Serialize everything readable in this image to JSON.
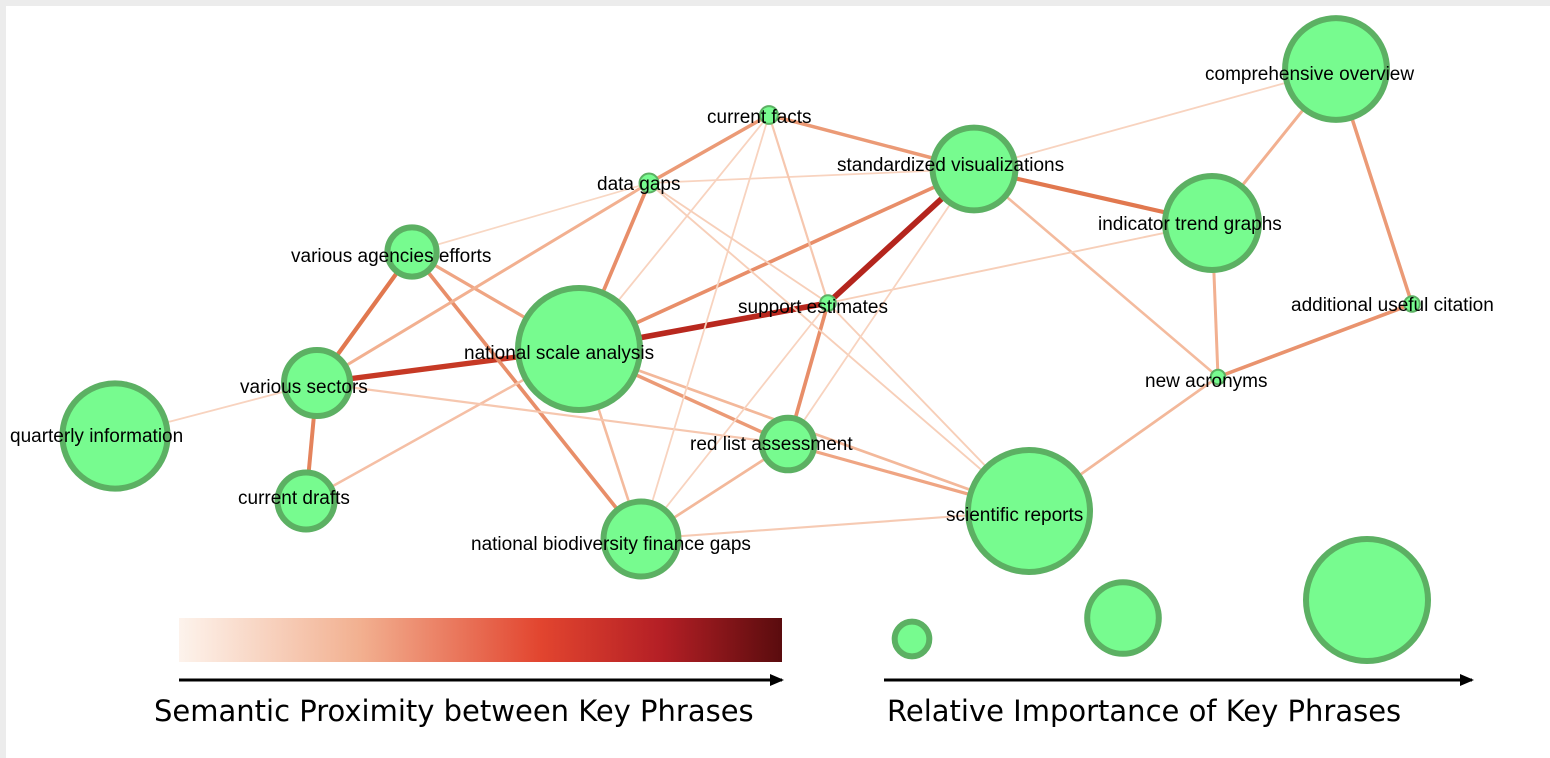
{
  "colors": {
    "node_fill": "#77fb8f",
    "node_stroke": "#5cb063",
    "edge_weak": "#fbe6d8",
    "edge_strong": "#a3181b",
    "gradient": [
      "#fdf3ec",
      "#f2b090",
      "#e2452f",
      "#b41f25",
      "#5a0c0e"
    ]
  },
  "nodes": [
    {
      "id": "quarterly-information",
      "label": "quarterly information",
      "importance": 0.85
    },
    {
      "id": "various-sectors",
      "label": "various sectors",
      "importance": 0.5
    },
    {
      "id": "current-drafts",
      "label": "current drafts",
      "importance": 0.42
    },
    {
      "id": "various-agencies-efforts",
      "label": "various agencies efforts",
      "importance": 0.35
    },
    {
      "id": "national-scale-analysis",
      "label": "national scale analysis",
      "importance": 1.0
    },
    {
      "id": "data-gaps",
      "label": "data gaps",
      "importance": 0.08
    },
    {
      "id": "current-facts",
      "label": "current facts",
      "importance": 0.07
    },
    {
      "id": "support-estimates",
      "label": "support estimates",
      "importance": 0.05
    },
    {
      "id": "red-list-assessment",
      "label": "red list assessment",
      "importance": 0.38
    },
    {
      "id": "national-biodiversity-finance-gaps",
      "label": "national biodiversity finance gaps",
      "importance": 0.58
    },
    {
      "id": "standardized-visualizations",
      "label": "standardized visualizations",
      "importance": 0.65
    },
    {
      "id": "scientific-reports",
      "label": "scientific reports",
      "importance": 1.0
    },
    {
      "id": "indicator-trend-graphs",
      "label": "indicator trend graphs",
      "importance": 0.75
    },
    {
      "id": "comprehensive-overview",
      "label": "comprehensive overview",
      "importance": 0.82
    },
    {
      "id": "additional-useful-citation",
      "label": "additional useful citation",
      "importance": 0.05
    },
    {
      "id": "new-acronyms",
      "label": "new acronyms",
      "importance": 0.04
    }
  ],
  "edges": [
    {
      "source": "national-scale-analysis",
      "target": "support-estimates",
      "proximity": 0.9
    },
    {
      "source": "support-estimates",
      "target": "standardized-visualizations",
      "proximity": 0.92
    },
    {
      "source": "various-sectors",
      "target": "national-scale-analysis",
      "proximity": 0.82
    },
    {
      "source": "various-sectors",
      "target": "various-agencies-efforts",
      "proximity": 0.6
    },
    {
      "source": "various-sectors",
      "target": "current-drafts",
      "proximity": 0.55
    },
    {
      "source": "various-agencies-efforts",
      "target": "national-biodiversity-finance-gaps",
      "proximity": 0.5
    },
    {
      "source": "various-agencies-efforts",
      "target": "national-scale-analysis",
      "proximity": 0.4
    },
    {
      "source": "data-gaps",
      "target": "national-scale-analysis",
      "proximity": 0.5
    },
    {
      "source": "data-gaps",
      "target": "current-facts",
      "proximity": 0.45
    },
    {
      "source": "data-gaps",
      "target": "various-sectors",
      "proximity": 0.35
    },
    {
      "source": "current-facts",
      "target": "standardized-visualizations",
      "proximity": 0.45
    },
    {
      "source": "national-scale-analysis",
      "target": "standardized-visualizations",
      "proximity": 0.5
    },
    {
      "source": "standardized-visualizations",
      "target": "indicator-trend-graphs",
      "proximity": 0.6
    },
    {
      "source": "indicator-trend-graphs",
      "target": "comprehensive-overview",
      "proximity": 0.35
    },
    {
      "source": "comprehensive-overview",
      "target": "additional-useful-citation",
      "proximity": 0.45
    },
    {
      "source": "additional-useful-citation",
      "target": "new-acronyms",
      "proximity": 0.48
    },
    {
      "source": "indicator-trend-graphs",
      "target": "new-acronyms",
      "proximity": 0.35
    },
    {
      "source": "new-acronyms",
      "target": "scientific-reports",
      "proximity": 0.3
    },
    {
      "source": "support-estimates",
      "target": "red-list-assessment",
      "proximity": 0.5
    },
    {
      "source": "national-scale-analysis",
      "target": "red-list-assessment",
      "proximity": 0.45
    },
    {
      "source": "red-list-assessment",
      "target": "scientific-reports",
      "proximity": 0.4
    },
    {
      "source": "national-scale-analysis",
      "target": "scientific-reports",
      "proximity": 0.3
    },
    {
      "source": "national-scale-analysis",
      "target": "national-biodiversity-finance-gaps",
      "proximity": 0.28
    },
    {
      "source": "red-list-assessment",
      "target": "national-biodiversity-finance-gaps",
      "proximity": 0.3
    },
    {
      "source": "national-biodiversity-finance-gaps",
      "target": "scientific-reports",
      "proximity": 0.18
    },
    {
      "source": "quarterly-information",
      "target": "various-sectors",
      "proximity": 0.12
    },
    {
      "source": "current-drafts",
      "target": "national-scale-analysis",
      "proximity": 0.25
    },
    {
      "source": "various-sectors",
      "target": "red-list-assessment",
      "proximity": 0.2
    },
    {
      "source": "various-agencies-efforts",
      "target": "data-gaps",
      "proximity": 0.1
    },
    {
      "source": "data-gaps",
      "target": "standardized-visualizations",
      "proximity": 0.12
    },
    {
      "source": "current-facts",
      "target": "support-estimates",
      "proximity": 0.2
    },
    {
      "source": "current-facts",
      "target": "national-scale-analysis",
      "proximity": 0.12
    },
    {
      "source": "current-facts",
      "target": "national-biodiversity-finance-gaps",
      "proximity": 0.12
    },
    {
      "source": "data-gaps",
      "target": "support-estimates",
      "proximity": 0.15
    },
    {
      "source": "data-gaps",
      "target": "scientific-reports",
      "proximity": 0.15
    },
    {
      "source": "standardized-visualizations",
      "target": "comprehensive-overview",
      "proximity": 0.12
    },
    {
      "source": "standardized-visualizations",
      "target": "new-acronyms",
      "proximity": 0.28
    },
    {
      "source": "support-estimates",
      "target": "indicator-trend-graphs",
      "proximity": 0.15
    },
    {
      "source": "support-estimates",
      "target": "scientific-reports",
      "proximity": 0.15
    },
    {
      "source": "support-estimates",
      "target": "national-biodiversity-finance-gaps",
      "proximity": 0.12
    },
    {
      "source": "standardized-visualizations",
      "target": "red-list-assessment",
      "proximity": 0.12
    }
  ],
  "legend": {
    "proximity_caption": "Semantic Proximity between Key Phrases",
    "importance_caption": "Relative Importance of Key Phrases",
    "importance_samples": [
      0.22,
      0.55,
      1.0
    ]
  }
}
